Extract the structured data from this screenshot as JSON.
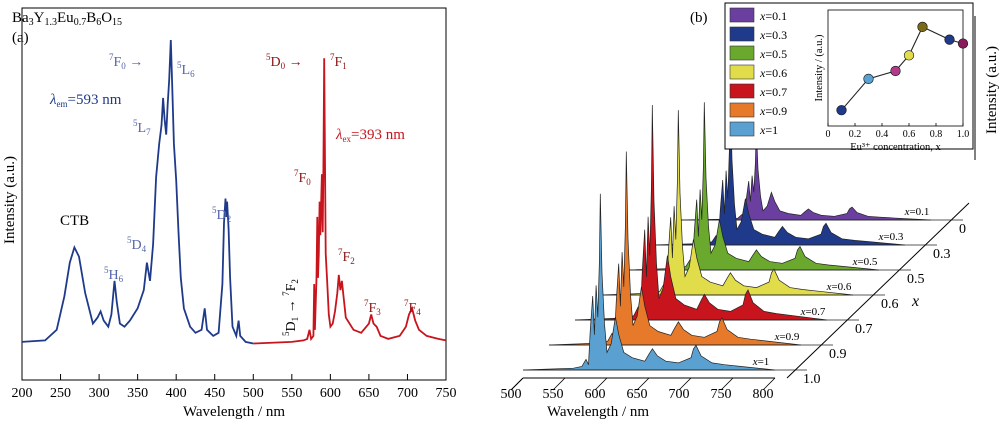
{
  "chart_data": [
    {
      "type": "line",
      "panel_label": "(a)",
      "title": "Ba₃Y₁.₃Eu₀.₇B₆O₁₅",
      "xlabel": "Wavelength / nm",
      "ylabel": "Intensity (a.u.)",
      "xlim": [
        200,
        750
      ],
      "xticks": [
        "200",
        "250",
        "300",
        "350",
        "400",
        "450",
        "500",
        "550",
        "600",
        "650",
        "700",
        "750"
      ],
      "colors": {
        "excitation": "#1f3a8a",
        "emission": "#c8141c"
      },
      "legend": [
        {
          "name": "λem=593 nm",
          "color": "#1f3a8a"
        },
        {
          "name": "λex=393 nm",
          "color": "#c8141c"
        }
      ],
      "annotations": [
        "CTB",
        "5H6",
        "5D4",
        "5L7",
        "7F0→",
        "5L6",
        "5D2",
        "5D0→",
        "7F1",
        "7F0",
        "7F2",
        "7F3",
        "7F4",
        "5D1→7F2"
      ],
      "series": [
        {
          "name": "λem=593 nm",
          "color": "#1f3a8a",
          "points": [
            [
              200,
              0.01
            ],
            [
              230,
              0.015
            ],
            [
              245,
              0.05
            ],
            [
              255,
              0.16
            ],
            [
              262,
              0.27
            ],
            [
              268,
              0.32
            ],
            [
              274,
              0.29
            ],
            [
              282,
              0.17
            ],
            [
              292,
              0.07
            ],
            [
              298,
              0.09
            ],
            [
              302,
              0.11
            ],
            [
              306,
              0.08
            ],
            [
              312,
              0.06
            ],
            [
              316,
              0.1
            ],
            [
              320,
              0.21
            ],
            [
              323,
              0.14
            ],
            [
              327,
              0.07
            ],
            [
              333,
              0.06
            ],
            [
              340,
              0.08
            ],
            [
              350,
              0.12
            ],
            [
              358,
              0.18
            ],
            [
              362,
              0.27
            ],
            [
              366,
              0.21
            ],
            [
              370,
              0.33
            ],
            [
              374,
              0.55
            ],
            [
              378,
              0.66
            ],
            [
              381,
              0.72
            ],
            [
              383,
              0.81
            ],
            [
              385,
              0.74
            ],
            [
              387,
              0.69
            ],
            [
              389,
              0.79
            ],
            [
              391,
              0.87
            ],
            [
              393,
              1.0
            ],
            [
              395,
              0.84
            ],
            [
              397,
              0.66
            ],
            [
              400,
              0.54
            ],
            [
              403,
              0.37
            ],
            [
              406,
              0.22
            ],
            [
              410,
              0.12
            ],
            [
              418,
              0.06
            ],
            [
              425,
              0.04
            ],
            [
              433,
              0.05
            ],
            [
              437,
              0.12
            ],
            [
              440,
              0.05
            ],
            [
              448,
              0.03
            ],
            [
              455,
              0.04
            ],
            [
              460,
              0.2
            ],
            [
              462,
              0.4
            ],
            [
              464,
              0.48
            ],
            [
              465,
              0.42
            ],
            [
              466,
              0.47
            ],
            [
              468,
              0.38
            ],
            [
              470,
              0.22
            ],
            [
              473,
              0.06
            ],
            [
              478,
              0.03
            ],
            [
              481,
              0.08
            ],
            [
              483,
              0.03
            ],
            [
              490,
              0.01
            ],
            [
              500,
              0.005
            ]
          ]
        },
        {
          "name": "λex=393 nm",
          "color": "#c8141c",
          "points": [
            [
              500,
              0.005
            ],
            [
              550,
              0.01
            ],
            [
              565,
              0.015
            ],
            [
              570,
              0.02
            ],
            [
              573,
              0.05
            ],
            [
              575,
              0.02
            ],
            [
              578,
              0.03
            ],
            [
              579,
              0.2
            ],
            [
              580,
              0.05
            ],
            [
              582,
              0.22
            ],
            [
              583,
              0.42
            ],
            [
              584,
              0.22
            ],
            [
              585,
              0.3
            ],
            [
              586,
              0.47
            ],
            [
              587,
              0.36
            ],
            [
              589,
              0.56
            ],
            [
              590,
              0.37
            ],
            [
              591,
              0.58
            ],
            [
              592,
              0.94
            ],
            [
              593,
              0.6
            ],
            [
              594,
              0.3
            ],
            [
              596,
              0.2
            ],
            [
              598,
              0.1
            ],
            [
              600,
              0.06
            ],
            [
              603,
              0.07
            ],
            [
              606,
              0.11
            ],
            [
              609,
              0.17
            ],
            [
              611,
              0.23
            ],
            [
              613,
              0.18
            ],
            [
              615,
              0.21
            ],
            [
              617,
              0.16
            ],
            [
              620,
              0.09
            ],
            [
              625,
              0.07
            ],
            [
              630,
              0.05
            ],
            [
              640,
              0.04
            ],
            [
              650,
              0.07
            ],
            [
              653,
              0.1
            ],
            [
              656,
              0.07
            ],
            [
              660,
              0.06
            ],
            [
              665,
              0.03
            ],
            [
              675,
              0.02
            ],
            [
              690,
              0.03
            ],
            [
              698,
              0.06
            ],
            [
              702,
              0.1
            ],
            [
              706,
              0.12
            ],
            [
              710,
              0.08
            ],
            [
              715,
              0.05
            ],
            [
              725,
              0.03
            ],
            [
              740,
              0.02
            ],
            [
              750,
              0.015
            ]
          ]
        }
      ]
    },
    {
      "type": "line",
      "panel_label": "(b)",
      "xlabel": "Wavelength / nm",
      "ylabel": "Intensity (a.u.)",
      "zlabel": "x",
      "xlim": [
        500,
        800
      ],
      "xticks": [
        "500",
        "550",
        "600",
        "650",
        "700",
        "750",
        "800"
      ],
      "zticks": [
        "0",
        "0.3",
        "0.5",
        "0.6",
        "0.7",
        "0.9",
        "1.0"
      ],
      "legend": [
        {
          "name": "x=0.1",
          "color": "#6b3fa0"
        },
        {
          "name": "x=0.3",
          "color": "#1f3a8a"
        },
        {
          "name": "x=0.5",
          "color": "#6aa82e"
        },
        {
          "name": "x=0.6",
          "color": "#e0dc4a"
        },
        {
          "name": "x=0.7",
          "color": "#c8141c"
        },
        {
          "name": "x=0.9",
          "color": "#e77a2a"
        },
        {
          "name": "x=1",
          "color": "#5aa0d0"
        }
      ],
      "peak_intensity": [
        0.43,
        0.72,
        0.78,
        0.86,
        1.0,
        0.9,
        0.82
      ],
      "profile": {
        "x": [
          500,
          560,
          570,
          575,
          578,
          580,
          583,
          585,
          587,
          589,
          591,
          592,
          594,
          597,
          600,
          605,
          610,
          614,
          620,
          630,
          645,
          650,
          654,
          660,
          670,
          685,
          700,
          703,
          706,
          712,
          725,
          740,
          760,
          800
        ],
        "y": [
          0,
          0.01,
          0.02,
          0.06,
          0.03,
          0.22,
          0.42,
          0.2,
          0.48,
          0.3,
          0.62,
          1.0,
          0.55,
          0.26,
          0.1,
          0.15,
          0.3,
          0.2,
          0.1,
          0.07,
          0.05,
          0.09,
          0.12,
          0.08,
          0.05,
          0.04,
          0.07,
          0.12,
          0.14,
          0.08,
          0.04,
          0.03,
          0.02,
          0.0
        ]
      },
      "inset": {
        "type": "scatter",
        "xlabel": "Eu³⁺ concentration, x",
        "ylabel": "Intensity / (a.u.)",
        "xlim": [
          0,
          1.0
        ],
        "xticks": [
          "0",
          "0.2",
          "0.4",
          "0.6",
          "0.8",
          "1.0"
        ],
        "x": [
          0.1,
          0.3,
          0.5,
          0.6,
          0.7,
          0.9,
          1.0
        ],
        "y": [
          0.1,
          0.42,
          0.5,
          0.66,
          0.95,
          0.82,
          0.78
        ],
        "colors": [
          "#1f3a8a",
          "#5aa0d0",
          "#b23a8a",
          "#e0dc4a",
          "#7a6a1a",
          "#1f3a8a",
          "#8a1a5a"
        ]
      }
    }
  ]
}
